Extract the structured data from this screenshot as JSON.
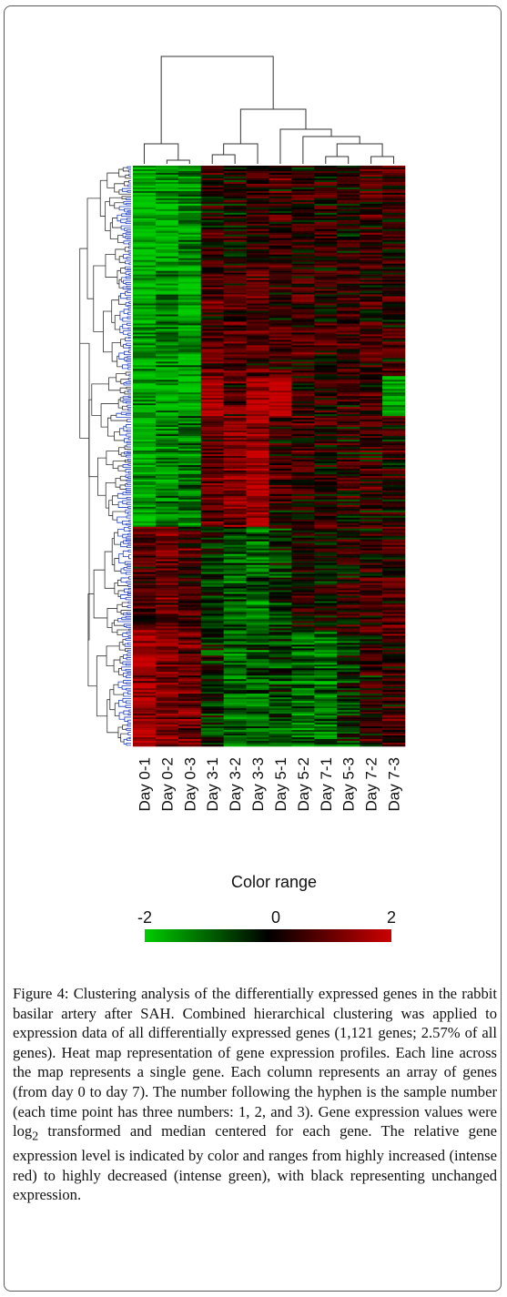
{
  "chart_data": {
    "type": "heatmap",
    "columns": [
      "Day 0-1",
      "Day 0-2",
      "Day 0-3",
      "Day 3-1",
      "Day 3-2",
      "Day 3-3",
      "Day 5-1",
      "Day 5-2",
      "Day 7-1",
      "Day 5-3",
      "Day 7-2",
      "Day 7-3"
    ],
    "legend": {
      "title": "Color range",
      "min_label": "-2",
      "mid_label": "0",
      "max_label": "2",
      "range": [
        -2,
        2
      ],
      "low_color": "#00cc00",
      "mid_color": "#000000",
      "high_color": "#cc0000"
    },
    "row_dendrogram_color": "#1f3fbf",
    "dendrogram_color": "#333333"
  },
  "caption": {
    "label": "Figure 4:",
    "text": " Clustering analysis of the differentially expressed genes in the rabbit basilar artery after SAH. Combined hierarchical clustering was applied to expression data of all differentially expressed genes (1,121 genes; 2.57% of all genes). Heat map representation of gene expression profiles. Each line across the map represents a single gene. Each column represents an array of genes (from day 0 to day 7). The number following the hyphen is the sample number (each time point has three numbers: 1, 2, and 3). Gene expression values were log",
    "subscript": "2",
    "text_after": " transformed and median centered for each gene. The relative gene expression level is indicated by color and ranges from highly increased (intense red) to highly decreased (intense green), with black representing unchanged expression."
  }
}
